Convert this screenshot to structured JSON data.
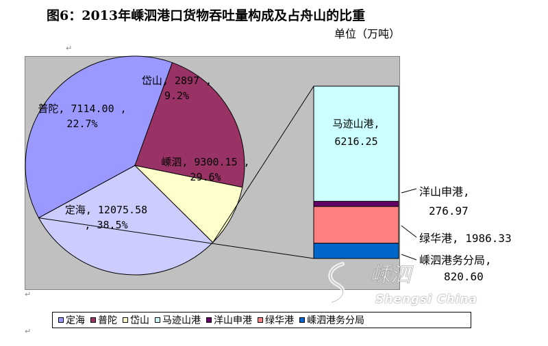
{
  "title": "图6：2013年嵊泗港口货物吞吐量构成及占舟山的比重",
  "unit_label": "单位（万吨）",
  "paragraph_mark": "↵",
  "colors": {
    "dinghai": "#9999ff",
    "putuo": "#993366",
    "daishan": "#ffffcc",
    "shengsi": "#ccccff",
    "majishan": "#ccffff",
    "yangshan": "#660066",
    "lvhua": "#ff8080",
    "shengsi_port_bureau": "#0066cc"
  },
  "chart_data": {
    "type": "pie",
    "subtype": "pie-of-bar",
    "pie": [
      {
        "name": "定海",
        "value": 12075.58,
        "percent": "38.5%",
        "color_key": "dinghai",
        "label_line1": "定海, 12075.58",
        "label_line2": ", 38.5%"
      },
      {
        "name": "普陀",
        "value": 7114.0,
        "percent": "22.7%",
        "color_key": "putuo",
        "label_line1": "普陀, 7114.00 ,",
        "label_line2": "22.7%"
      },
      {
        "name": "岱山",
        "value": 2897,
        "percent": "9.2%",
        "color_key": "daishan",
        "label_line1": "岱山, 2897 ,",
        "label_line2": "9.2%"
      },
      {
        "name": "嵊泗",
        "value": 9300.15,
        "percent": "29.6%",
        "color_key": "shengsi",
        "label_line1": "嵊泗, 9300.15 ,",
        "label_line2": "29.6%"
      }
    ],
    "bar": [
      {
        "name": "马迹山港",
        "value": 6216.25,
        "color_key": "majishan",
        "label_line1": "马迹山港,",
        "label_line2": "6216.25"
      },
      {
        "name": "洋山申港",
        "value": 276.97,
        "color_key": "yangshan",
        "label_line1": "洋山申港,",
        "label_line2": "276.97"
      },
      {
        "name": "绿华港",
        "value": 1986.33,
        "color_key": "lvhua",
        "label_line1": "绿华港, 1986.33",
        "label_line2": ""
      },
      {
        "name": "嵊泗港务分局",
        "value": 820.6,
        "color_key": "shengsi_port_bureau",
        "label_line1": "嵊泗港务分局,",
        "label_line2": "820.60"
      }
    ],
    "legend": [
      "定海",
      "普陀",
      "岱山",
      "马迹山港",
      "洋山申港",
      "绿华港",
      "嵊泗港务分局"
    ],
    "legend_placement": "bottom"
  },
  "watermark": {
    "text_cn": "嵊泗",
    "text_latin": "Shengsi China"
  }
}
